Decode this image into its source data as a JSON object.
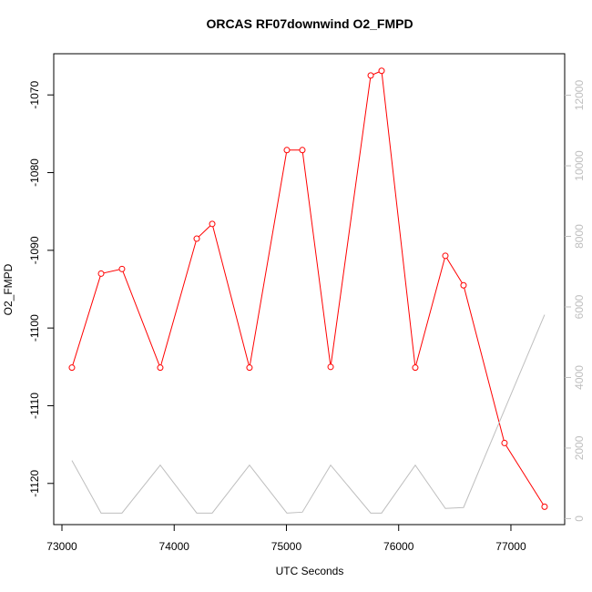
{
  "chart_data": {
    "type": "line",
    "title": "ORCAS RF07downwind O2_FMPD",
    "x_label": "UTC Seconds",
    "y_label": "O2_FMPD",
    "x": [
      73089,
      73349,
      73535,
      73876,
      74201,
      74339,
      74671,
      75004,
      75142,
      75394,
      75751,
      75848,
      76148,
      76416,
      76578,
      76943,
      77300
    ],
    "series": [
      {
        "name": "O2_FMPD",
        "color": "#ff0000",
        "markers": true,
        "values": [
          -1105.1,
          -1093.0,
          -1092.4,
          -1105.1,
          -1088.5,
          -1086.6,
          -1105.1,
          -1077.1,
          -1077.1,
          -1105.0,
          -1067.5,
          -1066.9,
          -1105.1,
          -1090.7,
          -1094.5,
          -1114.8,
          -1123.0
        ]
      },
      {
        "color": "#bebebe",
        "axis": "y2",
        "markers": false,
        "values": [
          1647,
          157,
          157,
          1516,
          157,
          157,
          1516,
          157,
          183,
          1516,
          157,
          157,
          1516,
          288,
          314,
          3085,
          5778
        ]
      }
    ],
    "xlim": [
      72927,
      77479
    ],
    "xticks": [
      73000,
      74000,
      75000,
      76000,
      77000
    ],
    "ylim": [
      -1125.3,
      -1064.7
    ],
    "yticks": [
      -1120,
      -1110,
      -1100,
      -1090,
      -1080,
      -1070
    ],
    "y2lim": [
      -170,
      13176
    ],
    "y2ticks": [
      0,
      2000,
      4000,
      6000,
      8000,
      10000,
      12000
    ],
    "y2_color": "#bebebe"
  }
}
